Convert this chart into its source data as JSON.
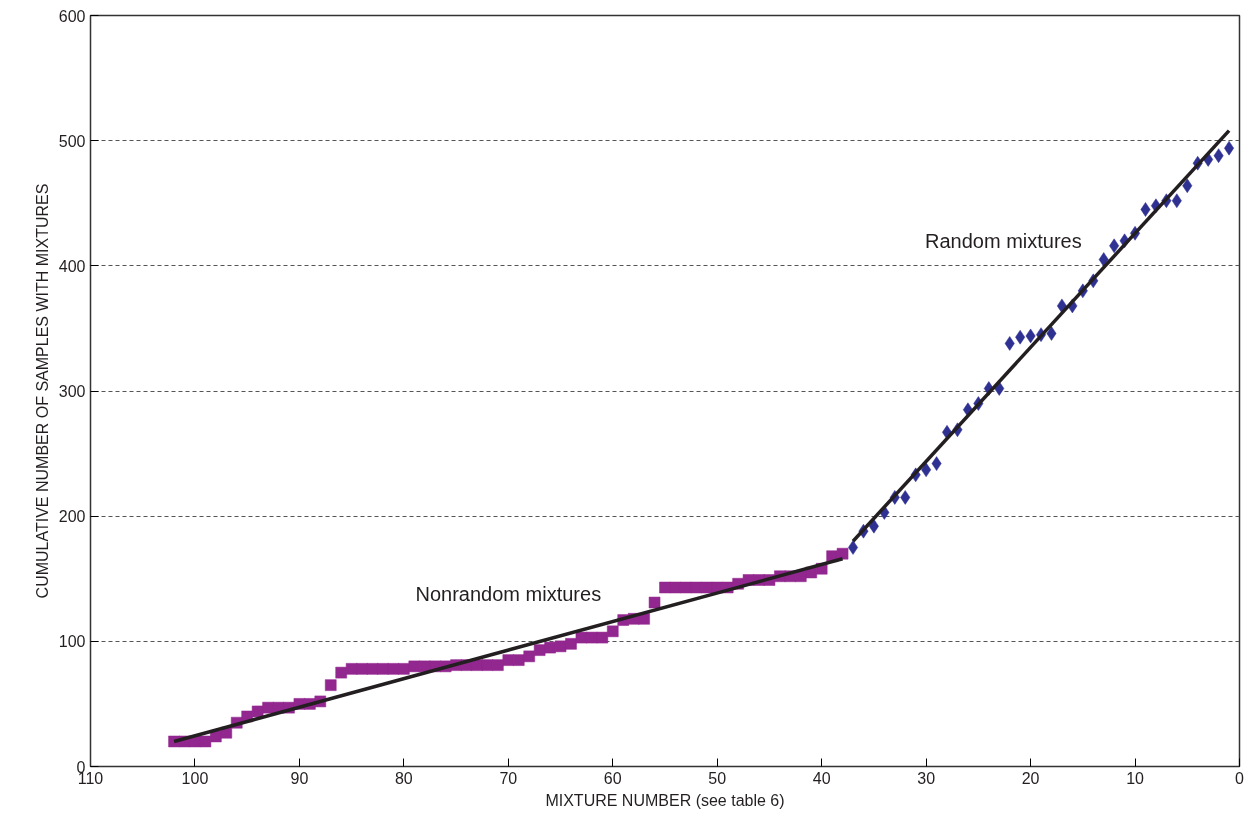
{
  "chart_data": {
    "type": "scatter",
    "xlabel": "MIXTURE NUMBER (see table 6)",
    "ylabel": "CUMULATIVE NUMBER OF SAMPLES WITH MIXTURES",
    "xlim": [
      110,
      0
    ],
    "xticks": [
      110,
      100,
      90,
      80,
      70,
      60,
      50,
      40,
      30,
      20,
      10,
      0
    ],
    "ylim": [
      0,
      600
    ],
    "yticks": [
      0,
      100,
      200,
      300,
      400,
      500,
      600
    ],
    "grid": "y",
    "series": [
      {
        "name": "Nonrandom mixtures",
        "marker": "square",
        "color": "#92278f",
        "x": [
          102,
          101,
          100,
          99,
          98,
          97,
          96,
          95,
          94,
          93,
          92,
          91,
          90,
          89,
          88,
          87,
          86,
          85,
          84,
          83,
          82,
          81,
          80,
          79,
          78,
          77,
          76,
          75,
          74,
          73,
          72,
          71,
          70,
          69,
          68,
          67,
          66,
          65,
          64,
          63,
          62,
          61,
          60,
          59,
          58,
          57,
          56,
          55,
          54,
          53,
          52,
          51,
          50,
          49,
          48,
          47,
          46,
          45,
          44,
          43,
          42,
          41,
          40,
          39,
          38
        ],
        "values": [
          20,
          20,
          20,
          20,
          24,
          27,
          35,
          40,
          44,
          47,
          47,
          47,
          50,
          50,
          52,
          65,
          75,
          78,
          78,
          78,
          78,
          78,
          78,
          80,
          80,
          80,
          80,
          81,
          81,
          81,
          81,
          81,
          85,
          85,
          88,
          93,
          95,
          96,
          98,
          103,
          103,
          103,
          108,
          117,
          118,
          118,
          131,
          143,
          143,
          143,
          143,
          143,
          143,
          143,
          146,
          149,
          149,
          149,
          152,
          152,
          152,
          155,
          158,
          168,
          170
        ]
      },
      {
        "name": "Random mixtures",
        "marker": "diamond",
        "color": "#2e3192",
        "x": [
          37,
          36,
          35,
          34,
          33,
          32,
          31,
          30,
          29,
          28,
          27,
          26,
          25,
          24,
          23,
          22,
          21,
          20,
          19,
          18,
          17,
          16,
          15,
          14,
          13,
          12,
          11,
          10,
          9,
          8,
          7,
          6,
          5,
          4,
          3,
          2,
          1
        ],
        "values": [
          175,
          188,
          192,
          203,
          215,
          215,
          233,
          237,
          242,
          267,
          269,
          285,
          290,
          302,
          302,
          338,
          343,
          344,
          345,
          346,
          368,
          368,
          380,
          388,
          405,
          416,
          420,
          426,
          445,
          448,
          452,
          452,
          464,
          482,
          485,
          488,
          494
        ]
      },
      {
        "type": "line",
        "line_style": "solid",
        "color": "#231f20",
        "x": [
          102,
          38
        ],
        "values": [
          20,
          166
        ]
      },
      {
        "type": "line",
        "line_style": "solid",
        "color": "#231f20",
        "x": [
          37,
          1
        ],
        "values": [
          180,
          508
        ]
      }
    ]
  }
}
